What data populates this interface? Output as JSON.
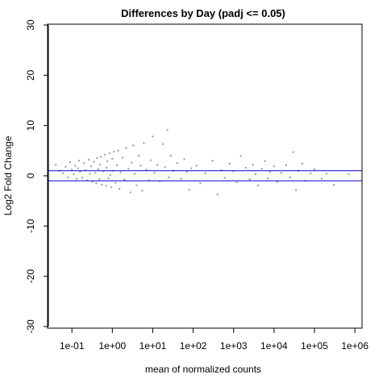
{
  "chart_data": {
    "type": "scatter",
    "title": "Differences by Day (padj <= 0.05)",
    "xlabel": "mean of normalized counts",
    "ylabel": "Log2 Fold Change",
    "x_scale": "log10",
    "xlim": [
      0.025,
      1500000
    ],
    "ylim": [
      -30,
      30
    ],
    "x_ticks": [
      {
        "value": 0.1,
        "label": "1e-01"
      },
      {
        "value": 1,
        "label": "1e+00"
      },
      {
        "value": 10,
        "label": "1e+01"
      },
      {
        "value": 100,
        "label": "1e+02"
      },
      {
        "value": 1000,
        "label": "1e+03"
      },
      {
        "value": 10000,
        "label": "1e+04"
      },
      {
        "value": 100000,
        "label": "1e+05"
      },
      {
        "value": 1000000,
        "label": "1e+06"
      }
    ],
    "y_ticks": [
      {
        "value": -30,
        "label": "-30"
      },
      {
        "value": -20,
        "label": "-20"
      },
      {
        "value": -10,
        "label": "-10"
      },
      {
        "value": 0,
        "label": "0"
      },
      {
        "value": 10,
        "label": "10"
      },
      {
        "value": 20,
        "label": "20"
      },
      {
        "value": 30,
        "label": "30"
      }
    ],
    "hlines": [
      1,
      -1
    ],
    "hline_color": "#0000cc",
    "point_color": "#999999",
    "grid": false,
    "points": [
      [
        0.04,
        2.2
      ],
      [
        0.05,
        1.0
      ],
      [
        0.06,
        0.5
      ],
      [
        0.07,
        1.8
      ],
      [
        0.08,
        -0.3
      ],
      [
        0.09,
        2.7
      ],
      [
        0.1,
        1.2
      ],
      [
        0.11,
        0.3
      ],
      [
        0.12,
        2.0
      ],
      [
        0.13,
        -0.6
      ],
      [
        0.14,
        1.5
      ],
      [
        0.15,
        3.0
      ],
      [
        0.16,
        0.8
      ],
      [
        0.18,
        -0.4
      ],
      [
        0.2,
        2.5
      ],
      [
        0.22,
        1.1
      ],
      [
        0.24,
        -0.9
      ],
      [
        0.26,
        3.2
      ],
      [
        0.28,
        0.4
      ],
      [
        0.3,
        1.9
      ],
      [
        0.32,
        -1.2
      ],
      [
        0.35,
        2.8
      ],
      [
        0.38,
        0.6
      ],
      [
        0.4,
        -1.5
      ],
      [
        0.42,
        3.5
      ],
      [
        0.45,
        1.3
      ],
      [
        0.48,
        -0.7
      ],
      [
        0.5,
        2.2
      ],
      [
        0.52,
        3.8
      ],
      [
        0.55,
        -1.8
      ],
      [
        0.6,
        0.9
      ],
      [
        0.65,
        4.2
      ],
      [
        0.7,
        -2.0
      ],
      [
        0.72,
        1.6
      ],
      [
        0.75,
        2.9
      ],
      [
        0.8,
        -0.5
      ],
      [
        0.85,
        4.5
      ],
      [
        0.9,
        0.2
      ],
      [
        0.95,
        -2.3
      ],
      [
        1.0,
        3.4
      ],
      [
        1.05,
        1.0
      ],
      [
        1.1,
        4.8
      ],
      [
        1.2,
        -1.4
      ],
      [
        1.3,
        2.1
      ],
      [
        1.4,
        5.0
      ],
      [
        1.5,
        -2.6
      ],
      [
        1.6,
        0.7
      ],
      [
        1.8,
        3.6
      ],
      [
        2.0,
        -0.8
      ],
      [
        2.2,
        5.5
      ],
      [
        2.5,
        1.4
      ],
      [
        2.8,
        -3.3
      ],
      [
        3.0,
        2.6
      ],
      [
        3.3,
        6.0
      ],
      [
        3.6,
        0.4
      ],
      [
        4.0,
        -1.9
      ],
      [
        4.5,
        4.0
      ],
      [
        5.0,
        2.0
      ],
      [
        5.5,
        -3.0
      ],
      [
        6.0,
        6.5
      ],
      [
        7.0,
        1.2
      ],
      [
        8.0,
        -0.9
      ],
      [
        9.0,
        3.1
      ],
      [
        10.0,
        7.8
      ],
      [
        11,
        0.6
      ],
      [
        13,
        2.2
      ],
      [
        15,
        -1.1
      ],
      [
        18,
        6.3
      ],
      [
        20,
        1.7
      ],
      [
        23,
        9.1
      ],
      [
        25,
        -0.3
      ],
      [
        28,
        4.0
      ],
      [
        32,
        1.0
      ],
      [
        40,
        2.5
      ],
      [
        50,
        -0.6
      ],
      [
        60,
        3.3
      ],
      [
        70,
        0.8
      ],
      [
        80,
        -2.8
      ],
      [
        90,
        1.5
      ],
      [
        120,
        2.0
      ],
      [
        150,
        -1.5
      ],
      [
        200,
        0.5
      ],
      [
        300,
        3.0
      ],
      [
        400,
        -3.7
      ],
      [
        500,
        1.1
      ],
      [
        600,
        -0.4
      ],
      [
        800,
        2.4
      ],
      [
        1000,
        0.9
      ],
      [
        1200,
        -1.3
      ],
      [
        1500,
        3.9
      ],
      [
        2000,
        1.6
      ],
      [
        2500,
        -0.7
      ],
      [
        3000,
        2.2
      ],
      [
        3500,
        0.3
      ],
      [
        4000,
        -1.9
      ],
      [
        5000,
        1.4
      ],
      [
        6000,
        2.9
      ],
      [
        7000,
        -0.5
      ],
      [
        8000,
        0.8
      ],
      [
        10000,
        1.9
      ],
      [
        12000,
        -1.2
      ],
      [
        15000,
        0.6
      ],
      [
        20000,
        2.1
      ],
      [
        25000,
        -0.3
      ],
      [
        30000,
        4.7
      ],
      [
        35000,
        -2.9
      ],
      [
        40000,
        1.0
      ],
      [
        50000,
        2.4
      ],
      [
        60000,
        -1.0
      ],
      [
        80000,
        0.5
      ],
      [
        100000,
        1.3
      ],
      [
        150000,
        -0.6
      ],
      [
        200000,
        0.4
      ],
      [
        300000,
        -1.8
      ],
      [
        700000,
        0.3
      ]
    ]
  }
}
